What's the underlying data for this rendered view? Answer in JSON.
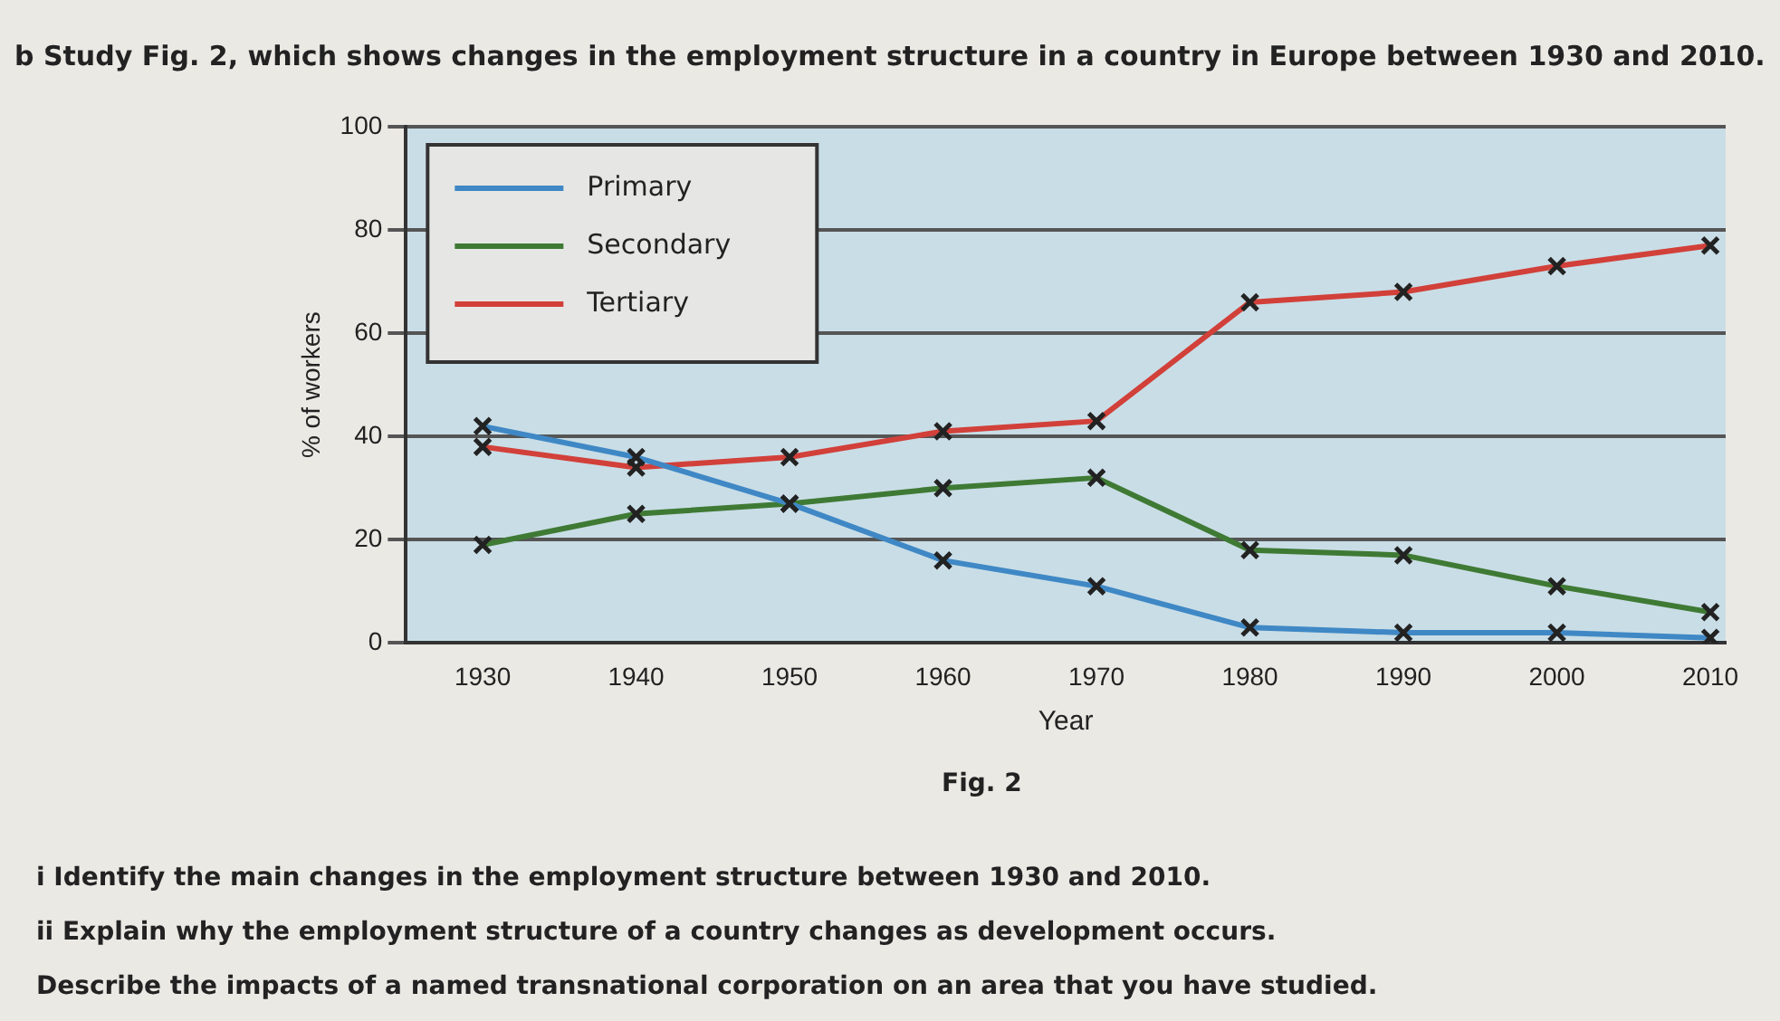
{
  "chart_data": {
    "type": "line",
    "title": "b Study Fig. 2, which shows changes in the employment structure in a country in Europe between 1930 and 2010.",
    "xlabel": "Year",
    "ylabel": "% of workers",
    "x": [
      1930,
      1940,
      1950,
      1960,
      1970,
      1980,
      1990,
      2000,
      2010
    ],
    "series": [
      {
        "name": "Primary",
        "color": "#3f88c5",
        "values": [
          42,
          36,
          27,
          16,
          11,
          3,
          2,
          2,
          1
        ]
      },
      {
        "name": "Secondary",
        "color": "#3f7a35",
        "values": [
          19,
          25,
          27,
          30,
          32,
          18,
          17,
          11,
          6
        ]
      },
      {
        "name": "Tertiary",
        "color": "#d2403a",
        "values": [
          38,
          34,
          36,
          41,
          43,
          66,
          68,
          73,
          77
        ]
      }
    ],
    "xlim": [
      1925,
      2011
    ],
    "xticks": [
      1930,
      1940,
      1950,
      1960,
      1970,
      1980,
      1990,
      2000,
      2010
    ],
    "ylim": [
      0,
      100
    ],
    "yticks": [
      0,
      20,
      40,
      60,
      80,
      100
    ],
    "grid": "y",
    "legend": "top left",
    "marker": "cross",
    "line_style": "solid",
    "annotations": [
      "Fig. 2",
      "i Identify the main changes in the employment structure between 1930 and 2010.",
      "ii Explain why the employment structure of a country changes as development occurs.",
      "Describe the impacts of a named transnational corporation on an area that you have studied."
    ]
  }
}
